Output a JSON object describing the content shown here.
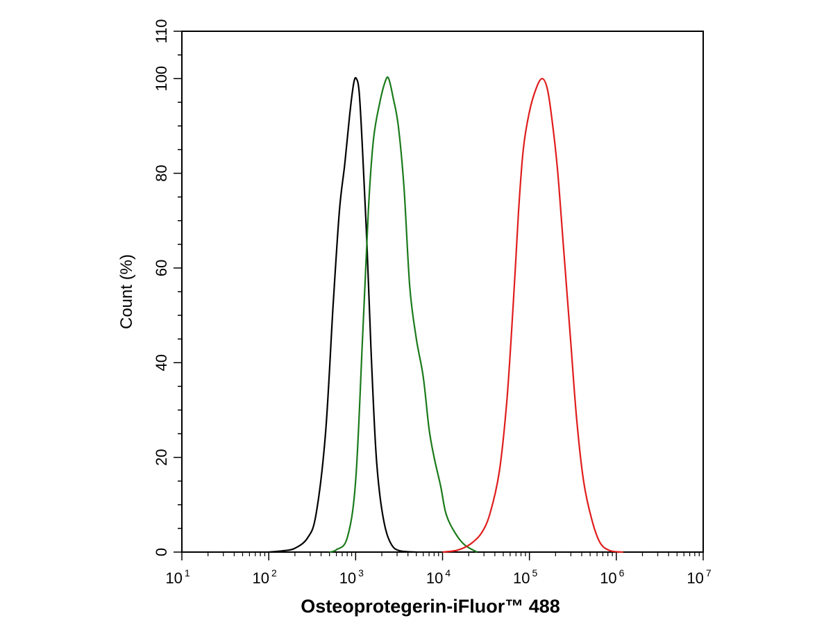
{
  "chart_data": {
    "type": "line",
    "title": "",
    "xlabel": "Osteoprotegerin-iFluor™ 488",
    "ylabel": "Count  (%)",
    "x_scale": "log",
    "xlim": [
      10,
      10000000
    ],
    "ylim": [
      0,
      110
    ],
    "x_ticks": [
      {
        "value": 10,
        "base": "10",
        "exp": "1"
      },
      {
        "value": 100,
        "base": "10",
        "exp": "2"
      },
      {
        "value": 1000,
        "base": "10",
        "exp": "3"
      },
      {
        "value": 10000,
        "base": "10",
        "exp": "4"
      },
      {
        "value": 100000,
        "base": "10",
        "exp": "5"
      },
      {
        "value": 1000000,
        "base": "10",
        "exp": "6"
      },
      {
        "value": 10000000,
        "base": "10",
        "exp": "7"
      }
    ],
    "y_ticks": [
      0,
      20,
      40,
      60,
      80,
      100,
      110
    ],
    "grid": false,
    "legend": "none",
    "series": [
      {
        "color": "#000000",
        "points": [
          [
            100,
            0
          ],
          [
            150,
            0.3
          ],
          [
            200,
            0.8
          ],
          [
            280,
            3
          ],
          [
            350,
            8
          ],
          [
            450,
            25
          ],
          [
            550,
            52
          ],
          [
            650,
            72
          ],
          [
            750,
            82
          ],
          [
            850,
            92
          ],
          [
            950,
            99
          ],
          [
            1020,
            100
          ],
          [
            1100,
            97
          ],
          [
            1200,
            85
          ],
          [
            1350,
            65
          ],
          [
            1500,
            43
          ],
          [
            1700,
            22
          ],
          [
            1900,
            12
          ],
          [
            2200,
            5
          ],
          [
            2600,
            1.5
          ],
          [
            3200,
            0.3
          ],
          [
            5000,
            0
          ]
        ]
      },
      {
        "color": "#1a7a1a",
        "points": [
          [
            500,
            0
          ],
          [
            600,
            0.5
          ],
          [
            800,
            3
          ],
          [
            1000,
            15
          ],
          [
            1200,
            45
          ],
          [
            1400,
            72
          ],
          [
            1600,
            87
          ],
          [
            1900,
            95
          ],
          [
            2200,
            99.5
          ],
          [
            2400,
            100
          ],
          [
            2700,
            96
          ],
          [
            3100,
            90
          ],
          [
            3600,
            77
          ],
          [
            4200,
            56
          ],
          [
            5000,
            45
          ],
          [
            6000,
            37
          ],
          [
            7000,
            26
          ],
          [
            8000,
            20
          ],
          [
            9500,
            14
          ],
          [
            11000,
            8
          ],
          [
            14000,
            4
          ],
          [
            18000,
            1.5
          ],
          [
            25000,
            0
          ]
        ]
      },
      {
        "color": "#e01c1c",
        "points": [
          [
            10000,
            0
          ],
          [
            14000,
            0.3
          ],
          [
            18000,
            1
          ],
          [
            22000,
            2
          ],
          [
            28000,
            4
          ],
          [
            35000,
            8
          ],
          [
            45000,
            17
          ],
          [
            55000,
            32
          ],
          [
            65000,
            52
          ],
          [
            75000,
            72
          ],
          [
            85000,
            85
          ],
          [
            100000,
            93
          ],
          [
            120000,
            98
          ],
          [
            140000,
            100
          ],
          [
            160000,
            98
          ],
          [
            180000,
            92
          ],
          [
            210000,
            81
          ],
          [
            250000,
            63
          ],
          [
            300000,
            44
          ],
          [
            350000,
            28
          ],
          [
            420000,
            15
          ],
          [
            520000,
            7
          ],
          [
            650000,
            2
          ],
          [
            850000,
            0.3
          ],
          [
            1200000,
            0
          ]
        ]
      }
    ]
  }
}
